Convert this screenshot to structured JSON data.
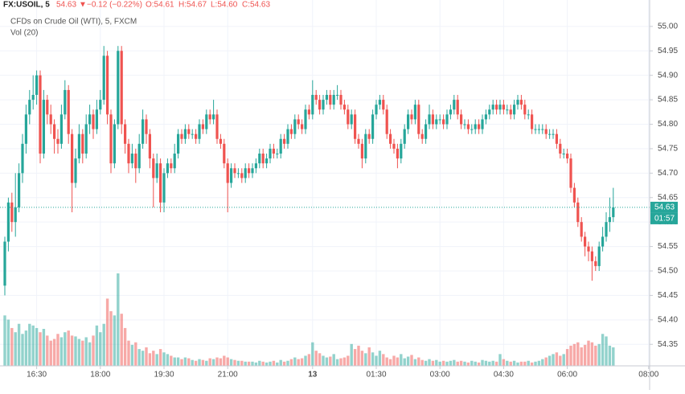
{
  "header": {
    "symbol": "FX:USOIL, 5",
    "last": "54.63",
    "change": "−0.12 (−0.22%)",
    "open": "O:54.61",
    "high": "H:54.67",
    "low": "L:54.60",
    "close": "C:54.63",
    "instrument": "CFDs on Crude Oil (WTI), 5, FXCM",
    "volume_label": "Vol (20)"
  },
  "chart_data": {
    "type": "candlestick",
    "up_color": "#26a69a",
    "down_color": "#ef5350",
    "grid": true,
    "ylim": [
      54.306,
      55.054
    ],
    "yticks": [
      54.35,
      {
        "value": 54.4,
        "label": "54.40"
      },
      54.45,
      {
        "value": 54.5,
        "label": "54.50"
      },
      54.55,
      {
        "value": 54.6,
        "label": "54.60"
      },
      54.65,
      {
        "value": 54.7,
        "label": "54.70"
      },
      54.75,
      {
        "value": 54.8,
        "label": "54.80"
      },
      54.85,
      {
        "value": 54.9,
        "label": "54.90"
      },
      54.95,
      {
        "value": 55.0,
        "label": "55.00"
      }
    ],
    "last_price": {
      "value": 54.63,
      "label": "54.63"
    },
    "countdown": "01:57",
    "categories": [
      null,
      null,
      null,
      null,
      null,
      null,
      null,
      null,
      null,
      "16:30",
      null,
      null,
      null,
      null,
      null,
      null,
      null,
      null,
      null,
      null,
      null,
      null,
      null,
      null,
      null,
      null,
      null,
      "18:00",
      null,
      null,
      null,
      null,
      null,
      null,
      null,
      null,
      null,
      null,
      null,
      null,
      null,
      null,
      null,
      null,
      null,
      "19:30",
      null,
      null,
      null,
      null,
      null,
      null,
      null,
      null,
      null,
      null,
      null,
      null,
      null,
      null,
      null,
      null,
      null,
      "21:00",
      null,
      null,
      null,
      null,
      null,
      null,
      null,
      null,
      null,
      null,
      null,
      null,
      null,
      null,
      null,
      null,
      null,
      null,
      null,
      null,
      null,
      null,
      null,
      "13",
      null,
      null,
      null,
      null,
      null,
      null,
      null,
      null,
      null,
      null,
      null,
      null,
      null,
      null,
      null,
      null,
      null,
      "01:30",
      null,
      null,
      null,
      null,
      null,
      null,
      null,
      null,
      null,
      null,
      null,
      null,
      null,
      null,
      null,
      null,
      null,
      "03:00",
      null,
      null,
      null,
      null,
      null,
      null,
      null,
      null,
      null,
      null,
      null,
      null,
      null,
      null,
      null,
      null,
      null,
      "04:30",
      null,
      null,
      null,
      null,
      null,
      null,
      null,
      null,
      null,
      null,
      null,
      null,
      null,
      null,
      null,
      null,
      null,
      "06:00",
      null,
      null,
      null,
      null,
      null,
      null,
      null,
      null,
      null,
      null,
      null,
      null,
      null,
      null,
      null,
      null,
      null,
      null,
      null,
      null,
      null,
      null,
      "08:00"
    ],
    "candles": [
      [
        54.47,
        54.57,
        54.45,
        54.56
      ],
      [
        54.56,
        54.65,
        54.54,
        54.64
      ],
      [
        54.64,
        54.66,
        54.58,
        54.6
      ],
      [
        54.6,
        54.7,
        54.57,
        54.63
      ],
      [
        54.63,
        54.72,
        54.62,
        54.7
      ],
      [
        54.7,
        54.78,
        54.68,
        54.76
      ],
      [
        54.76,
        54.84,
        54.74,
        54.82
      ],
      [
        54.82,
        54.87,
        54.8,
        54.85
      ],
      [
        54.85,
        54.9,
        54.83,
        54.86
      ],
      [
        54.86,
        54.91,
        54.84,
        54.9
      ],
      [
        54.9,
        54.91,
        54.72,
        54.74
      ],
      [
        54.74,
        54.87,
        54.73,
        54.85
      ],
      [
        54.85,
        54.86,
        54.8,
        54.82
      ],
      [
        54.82,
        54.84,
        54.78,
        54.8
      ],
      [
        54.8,
        54.81,
        54.74,
        54.77
      ],
      [
        54.77,
        54.79,
        54.74,
        54.76
      ],
      [
        54.76,
        54.84,
        54.75,
        54.82
      ],
      [
        54.82,
        54.89,
        54.81,
        54.87
      ],
      [
        54.87,
        54.88,
        54.76,
        54.78
      ],
      [
        54.78,
        54.79,
        54.62,
        54.68
      ],
      [
        54.68,
        54.75,
        54.67,
        54.73
      ],
      [
        54.73,
        54.8,
        54.72,
        54.78
      ],
      [
        54.78,
        54.79,
        54.72,
        54.74
      ],
      [
        54.74,
        54.82,
        54.73,
        54.8
      ],
      [
        54.8,
        54.84,
        54.78,
        54.82
      ],
      [
        54.82,
        54.83,
        54.77,
        54.79
      ],
      [
        54.79,
        54.85,
        54.78,
        54.83
      ],
      [
        54.83,
        54.87,
        54.82,
        54.85
      ],
      [
        54.85,
        54.96,
        54.84,
        54.94
      ],
      [
        54.94,
        54.95,
        54.8,
        54.82
      ],
      [
        54.82,
        54.83,
        54.7,
        54.72
      ],
      [
        54.72,
        54.81,
        54.71,
        54.8
      ],
      [
        54.8,
        54.96,
        54.79,
        54.95
      ],
      [
        54.95,
        54.96,
        54.78,
        54.8
      ],
      [
        54.8,
        54.81,
        54.74,
        54.76
      ],
      [
        54.76,
        54.77,
        54.7,
        54.72
      ],
      [
        54.72,
        54.76,
        54.71,
        54.74
      ],
      [
        54.74,
        54.75,
        54.68,
        54.71
      ],
      [
        54.71,
        54.78,
        54.7,
        54.76
      ],
      [
        54.76,
        54.83,
        54.75,
        54.81
      ],
      [
        54.81,
        54.82,
        54.76,
        54.78
      ],
      [
        54.78,
        54.79,
        54.71,
        54.73
      ],
      [
        54.73,
        54.74,
        54.63,
        54.69
      ],
      [
        54.69,
        54.74,
        54.68,
        54.72
      ],
      [
        54.72,
        54.73,
        54.62,
        54.64
      ],
      [
        54.64,
        54.71,
        54.62,
        54.7
      ],
      [
        54.7,
        54.73,
        54.69,
        54.72
      ],
      [
        54.72,
        54.73,
        54.7,
        54.71
      ],
      [
        54.71,
        54.76,
        54.7,
        54.74
      ],
      [
        54.74,
        54.79,
        54.73,
        54.78
      ],
      [
        54.78,
        54.79,
        54.76,
        54.77
      ],
      [
        54.77,
        54.8,
        54.76,
        54.79
      ],
      [
        54.79,
        54.8,
        54.77,
        54.78
      ],
      [
        54.78,
        54.79,
        54.77,
        54.78
      ],
      [
        54.78,
        54.79,
        54.76,
        54.77
      ],
      [
        54.77,
        54.81,
        54.76,
        54.8
      ],
      [
        54.8,
        54.81,
        54.78,
        54.79
      ],
      [
        54.79,
        54.83,
        54.78,
        54.82
      ],
      [
        54.82,
        54.83,
        54.8,
        54.81
      ],
      [
        54.81,
        54.85,
        54.8,
        54.82
      ],
      [
        54.82,
        54.83,
        54.76,
        54.77
      ],
      [
        54.77,
        54.78,
        54.75,
        54.76
      ],
      [
        54.76,
        54.77,
        54.71,
        54.72
      ],
      [
        54.72,
        54.73,
        54.62,
        54.68
      ],
      [
        54.68,
        54.72,
        54.67,
        54.71
      ],
      [
        54.71,
        54.72,
        54.69,
        54.7
      ],
      [
        54.7,
        54.71,
        54.69,
        54.7
      ],
      [
        54.7,
        54.71,
        54.68,
        54.69
      ],
      [
        54.69,
        54.72,
        54.68,
        54.71
      ],
      [
        54.71,
        54.72,
        54.69,
        54.7
      ],
      [
        54.7,
        54.72,
        54.69,
        54.71
      ],
      [
        54.71,
        54.73,
        54.7,
        54.72
      ],
      [
        54.72,
        54.75,
        54.71,
        54.74
      ],
      [
        54.74,
        54.75,
        54.71,
        54.72
      ],
      [
        54.72,
        54.74,
        54.71,
        54.73
      ],
      [
        54.73,
        54.76,
        54.72,
        54.75
      ],
      [
        54.75,
        54.76,
        54.73,
        54.74
      ],
      [
        54.74,
        54.75,
        54.73,
        54.74
      ],
      [
        54.74,
        54.78,
        54.73,
        54.77
      ],
      [
        54.77,
        54.78,
        54.75,
        54.76
      ],
      [
        54.76,
        54.8,
        54.75,
        54.79
      ],
      [
        54.79,
        54.8,
        54.77,
        54.78
      ],
      [
        54.78,
        54.82,
        54.77,
        54.81
      ],
      [
        54.81,
        54.82,
        54.79,
        54.8
      ],
      [
        54.8,
        54.81,
        54.78,
        54.79
      ],
      [
        54.79,
        54.84,
        54.78,
        54.83
      ],
      [
        54.83,
        54.84,
        54.81,
        54.82
      ],
      [
        54.82,
        54.89,
        54.81,
        54.86
      ],
      [
        54.86,
        54.87,
        54.84,
        54.85
      ],
      [
        54.85,
        54.86,
        54.82,
        54.83
      ],
      [
        54.83,
        54.86,
        54.82,
        54.85
      ],
      [
        54.85,
        54.87,
        54.84,
        54.86
      ],
      [
        54.86,
        54.87,
        54.83,
        54.84
      ],
      [
        54.84,
        54.87,
        54.83,
        54.86
      ],
      [
        54.86,
        54.88,
        54.85,
        54.86
      ],
      [
        54.86,
        54.87,
        54.83,
        54.84
      ],
      [
        54.84,
        54.85,
        54.82,
        54.83
      ],
      [
        54.83,
        54.84,
        54.79,
        54.8
      ],
      [
        54.8,
        54.83,
        54.79,
        54.82
      ],
      [
        54.82,
        54.83,
        54.76,
        54.77
      ],
      [
        54.77,
        54.78,
        54.75,
        54.76
      ],
      [
        54.76,
        54.77,
        54.71,
        54.73
      ],
      [
        54.73,
        54.79,
        54.72,
        54.78
      ],
      [
        54.78,
        54.79,
        54.76,
        54.77
      ],
      [
        54.77,
        54.83,
        54.76,
        54.82
      ],
      [
        54.82,
        54.85,
        54.81,
        54.84
      ],
      [
        54.84,
        54.86,
        54.83,
        54.85
      ],
      [
        54.85,
        54.86,
        54.82,
        54.83
      ],
      [
        54.83,
        54.84,
        54.77,
        54.78
      ],
      [
        54.78,
        54.79,
        54.75,
        54.76
      ],
      [
        54.76,
        54.77,
        54.74,
        54.75
      ],
      [
        54.75,
        54.76,
        54.71,
        54.73
      ],
      [
        54.73,
        54.77,
        54.72,
        54.76
      ],
      [
        54.76,
        54.8,
        54.75,
        54.79
      ],
      [
        54.79,
        54.83,
        54.78,
        54.82
      ],
      [
        54.82,
        54.83,
        54.8,
        54.81
      ],
      [
        54.81,
        54.85,
        54.8,
        54.84
      ],
      [
        54.84,
        54.85,
        54.77,
        54.78
      ],
      [
        54.78,
        54.79,
        54.76,
        54.77
      ],
      [
        54.77,
        54.81,
        54.76,
        54.8
      ],
      [
        54.8,
        54.84,
        54.79,
        54.82
      ],
      [
        54.82,
        54.83,
        54.79,
        54.8
      ],
      [
        54.8,
        54.82,
        54.79,
        54.81
      ],
      [
        54.81,
        54.82,
        54.8,
        54.81
      ],
      [
        54.81,
        54.82,
        54.79,
        54.8
      ],
      [
        54.8,
        54.83,
        54.79,
        54.82
      ],
      [
        54.82,
        54.84,
        54.81,
        54.83
      ],
      [
        54.83,
        54.86,
        54.82,
        54.85
      ],
      [
        54.85,
        54.86,
        54.81,
        54.82
      ],
      [
        54.82,
        54.83,
        54.79,
        54.8
      ],
      [
        54.8,
        54.81,
        54.79,
        54.8
      ],
      [
        54.8,
        54.81,
        54.78,
        54.79
      ],
      [
        54.79,
        54.8,
        54.78,
        54.79
      ],
      [
        54.79,
        54.81,
        54.78,
        54.8
      ],
      [
        54.8,
        54.81,
        54.78,
        54.79
      ],
      [
        54.79,
        54.82,
        54.78,
        54.81
      ],
      [
        54.81,
        54.83,
        54.8,
        54.82
      ],
      [
        54.82,
        54.84,
        54.81,
        54.83
      ],
      [
        54.83,
        54.85,
        54.82,
        54.84
      ],
      [
        54.84,
        54.85,
        54.82,
        54.83
      ],
      [
        54.83,
        54.85,
        54.82,
        54.84
      ],
      [
        54.84,
        54.85,
        54.82,
        54.83
      ],
      [
        54.83,
        54.84,
        54.82,
        54.83
      ],
      [
        54.83,
        54.84,
        54.81,
        54.82
      ],
      [
        54.82,
        54.85,
        54.81,
        54.84
      ],
      [
        54.84,
        54.86,
        54.83,
        54.85
      ],
      [
        54.85,
        54.86,
        54.83,
        54.84
      ],
      [
        54.84,
        54.85,
        54.81,
        54.82
      ],
      [
        54.82,
        54.83,
        54.81,
        54.82
      ],
      [
        54.82,
        54.83,
        54.78,
        54.79
      ],
      [
        54.79,
        54.8,
        54.78,
        54.79
      ],
      [
        54.79,
        54.8,
        54.78,
        54.79
      ],
      [
        54.79,
        54.8,
        54.78,
        54.79
      ],
      [
        54.79,
        54.8,
        54.77,
        54.78
      ],
      [
        54.78,
        54.79,
        54.77,
        54.78
      ],
      [
        54.78,
        54.79,
        54.77,
        54.78
      ],
      [
        54.78,
        54.79,
        54.75,
        54.76
      ],
      [
        54.76,
        54.77,
        54.73,
        54.74
      ],
      [
        54.74,
        54.75,
        54.73,
        54.74
      ],
      [
        54.74,
        54.75,
        54.72,
        54.73
      ],
      [
        54.73,
        54.74,
        54.66,
        54.67
      ],
      [
        54.67,
        54.68,
        54.63,
        54.64
      ],
      [
        54.64,
        54.65,
        54.59,
        54.6
      ],
      [
        54.6,
        54.61,
        54.56,
        54.57
      ],
      [
        54.57,
        54.58,
        54.53,
        54.55
      ],
      [
        54.55,
        54.56,
        54.52,
        54.54
      ],
      [
        54.54,
        54.55,
        54.48,
        54.52
      ],
      [
        54.52,
        54.53,
        54.5,
        54.51
      ],
      [
        54.51,
        54.56,
        54.5,
        54.55
      ],
      [
        54.55,
        54.59,
        54.54,
        54.57
      ],
      [
        54.57,
        54.62,
        54.56,
        54.6
      ],
      [
        54.6,
        54.65,
        54.58,
        54.61
      ],
      [
        54.61,
        54.67,
        54.6,
        54.63
      ],
      null,
      null,
      null,
      null,
      null,
      null,
      null,
      null,
      null,
      null
    ],
    "volume": [
      60,
      55,
      45,
      40,
      50,
      38,
      42,
      50,
      48,
      45,
      40,
      44,
      36,
      30,
      32,
      38,
      34,
      40,
      42,
      36,
      35,
      32,
      30,
      34,
      28,
      36,
      48,
      40,
      50,
      80,
      65,
      60,
      110,
      62,
      45,
      30,
      25,
      28,
      20,
      18,
      22,
      15,
      18,
      14,
      20,
      16,
      14,
      12,
      10,
      10,
      8,
      10,
      9,
      7,
      6,
      8,
      7,
      6,
      9,
      8,
      10,
      9,
      12,
      10,
      8,
      7,
      6,
      6,
      5,
      5,
      5,
      4,
      6,
      5,
      4,
      5,
      6,
      4,
      7,
      5,
      6,
      8,
      10,
      8,
      9,
      12,
      14,
      28,
      18,
      15,
      12,
      10,
      11,
      14,
      8,
      9,
      10,
      12,
      26,
      20,
      24,
      18,
      15,
      22,
      16,
      12,
      18,
      14,
      10,
      8,
      12,
      10,
      14,
      9,
      11,
      13,
      8,
      10,
      7,
      6,
      8,
      6,
      7,
      5,
      6,
      5,
      6,
      7,
      5,
      6,
      5,
      4,
      6,
      5,
      4,
      7,
      6,
      5,
      6,
      5,
      14,
      8,
      6,
      5,
      6,
      4,
      5,
      5,
      6,
      4,
      5,
      6,
      8,
      10,
      12,
      14,
      16,
      12,
      14,
      20,
      24,
      26,
      28,
      22,
      25,
      30,
      28,
      24,
      26,
      38,
      35,
      24,
      22,
      null,
      null,
      null,
      null,
      null,
      null,
      null,
      null,
      null,
      null
    ]
  }
}
